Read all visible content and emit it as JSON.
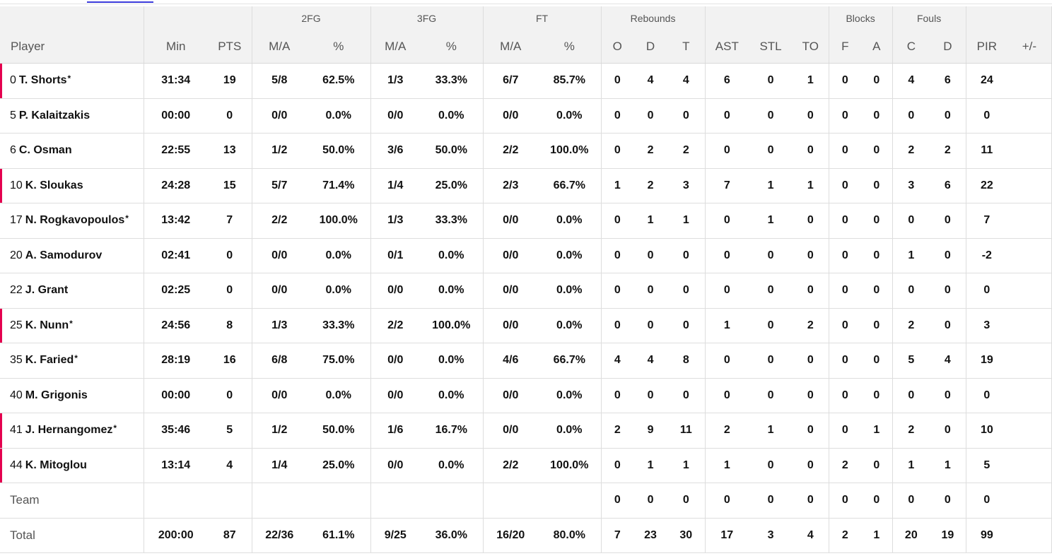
{
  "header": {
    "groups": {
      "fg2": "2FG",
      "fg3": "3FG",
      "ft": "FT",
      "rebounds": "Rebounds",
      "blocks": "Blocks",
      "fouls": "Fouls"
    },
    "columns": {
      "player": "Player",
      "min": "Min",
      "pts": "PTS",
      "fg2_ma": "M/A",
      "fg2_pct": "%",
      "fg3_ma": "M/A",
      "fg3_pct": "%",
      "ft_ma": "M/A",
      "ft_pct": "%",
      "reb_o": "O",
      "reb_d": "D",
      "reb_t": "T",
      "ast": "AST",
      "stl": "STL",
      "to": "TO",
      "blk_f": "F",
      "blk_a": "A",
      "foul_c": "C",
      "foul_d": "D",
      "pir": "PIR",
      "plusminus": "+/-"
    }
  },
  "players": [
    {
      "num": "0",
      "name": "T. Shorts",
      "star": "*",
      "starter": true,
      "min": "31:34",
      "pts": "19",
      "fg2_ma": "5/8",
      "fg2_pct": "62.5%",
      "fg3_ma": "1/3",
      "fg3_pct": "33.3%",
      "ft_ma": "6/7",
      "ft_pct": "85.7%",
      "reb_o": "0",
      "reb_d": "4",
      "reb_t": "4",
      "ast": "6",
      "stl": "0",
      "to": "1",
      "blk_f": "0",
      "blk_a": "0",
      "foul_c": "4",
      "foul_d": "6",
      "pir": "24",
      "plusminus": ""
    },
    {
      "num": "5",
      "name": "P. Kalaitzakis",
      "star": "",
      "starter": false,
      "min": "00:00",
      "pts": "0",
      "fg2_ma": "0/0",
      "fg2_pct": "0.0%",
      "fg3_ma": "0/0",
      "fg3_pct": "0.0%",
      "ft_ma": "0/0",
      "ft_pct": "0.0%",
      "reb_o": "0",
      "reb_d": "0",
      "reb_t": "0",
      "ast": "0",
      "stl": "0",
      "to": "0",
      "blk_f": "0",
      "blk_a": "0",
      "foul_c": "0",
      "foul_d": "0",
      "pir": "0",
      "plusminus": ""
    },
    {
      "num": "6",
      "name": "C. Osman",
      "star": "",
      "starter": false,
      "min": "22:55",
      "pts": "13",
      "fg2_ma": "1/2",
      "fg2_pct": "50.0%",
      "fg3_ma": "3/6",
      "fg3_pct": "50.0%",
      "ft_ma": "2/2",
      "ft_pct": "100.0%",
      "reb_o": "0",
      "reb_d": "2",
      "reb_t": "2",
      "ast": "0",
      "stl": "0",
      "to": "0",
      "blk_f": "0",
      "blk_a": "0",
      "foul_c": "2",
      "foul_d": "2",
      "pir": "11",
      "plusminus": ""
    },
    {
      "num": "10",
      "name": "K. Sloukas",
      "star": "",
      "starter": true,
      "min": "24:28",
      "pts": "15",
      "fg2_ma": "5/7",
      "fg2_pct": "71.4%",
      "fg3_ma": "1/4",
      "fg3_pct": "25.0%",
      "ft_ma": "2/3",
      "ft_pct": "66.7%",
      "reb_o": "1",
      "reb_d": "2",
      "reb_t": "3",
      "ast": "7",
      "stl": "1",
      "to": "1",
      "blk_f": "0",
      "blk_a": "0",
      "foul_c": "3",
      "foul_d": "6",
      "pir": "22",
      "plusminus": ""
    },
    {
      "num": "17",
      "name": "N. Rogkavopoulos",
      "star": "*",
      "starter": false,
      "min": "13:42",
      "pts": "7",
      "fg2_ma": "2/2",
      "fg2_pct": "100.0%",
      "fg3_ma": "1/3",
      "fg3_pct": "33.3%",
      "ft_ma": "0/0",
      "ft_pct": "0.0%",
      "reb_o": "0",
      "reb_d": "1",
      "reb_t": "1",
      "ast": "0",
      "stl": "1",
      "to": "0",
      "blk_f": "0",
      "blk_a": "0",
      "foul_c": "0",
      "foul_d": "0",
      "pir": "7",
      "plusminus": ""
    },
    {
      "num": "20",
      "name": "A. Samodurov",
      "star": "",
      "starter": false,
      "min": "02:41",
      "pts": "0",
      "fg2_ma": "0/0",
      "fg2_pct": "0.0%",
      "fg3_ma": "0/1",
      "fg3_pct": "0.0%",
      "ft_ma": "0/0",
      "ft_pct": "0.0%",
      "reb_o": "0",
      "reb_d": "0",
      "reb_t": "0",
      "ast": "0",
      "stl": "0",
      "to": "0",
      "blk_f": "0",
      "blk_a": "0",
      "foul_c": "1",
      "foul_d": "0",
      "pir": "-2",
      "plusminus": ""
    },
    {
      "num": "22",
      "name": "J. Grant",
      "star": "",
      "starter": false,
      "min": "02:25",
      "pts": "0",
      "fg2_ma": "0/0",
      "fg2_pct": "0.0%",
      "fg3_ma": "0/0",
      "fg3_pct": "0.0%",
      "ft_ma": "0/0",
      "ft_pct": "0.0%",
      "reb_o": "0",
      "reb_d": "0",
      "reb_t": "0",
      "ast": "0",
      "stl": "0",
      "to": "0",
      "blk_f": "0",
      "blk_a": "0",
      "foul_c": "0",
      "foul_d": "0",
      "pir": "0",
      "plusminus": ""
    },
    {
      "num": "25",
      "name": "K. Nunn",
      "star": "*",
      "starter": true,
      "min": "24:56",
      "pts": "8",
      "fg2_ma": "1/3",
      "fg2_pct": "33.3%",
      "fg3_ma": "2/2",
      "fg3_pct": "100.0%",
      "ft_ma": "0/0",
      "ft_pct": "0.0%",
      "reb_o": "0",
      "reb_d": "0",
      "reb_t": "0",
      "ast": "1",
      "stl": "0",
      "to": "2",
      "blk_f": "0",
      "blk_a": "0",
      "foul_c": "2",
      "foul_d": "0",
      "pir": "3",
      "plusminus": ""
    },
    {
      "num": "35",
      "name": "K. Faried",
      "star": "*",
      "starter": false,
      "min": "28:19",
      "pts": "16",
      "fg2_ma": "6/8",
      "fg2_pct": "75.0%",
      "fg3_ma": "0/0",
      "fg3_pct": "0.0%",
      "ft_ma": "4/6",
      "ft_pct": "66.7%",
      "reb_o": "4",
      "reb_d": "4",
      "reb_t": "8",
      "ast": "0",
      "stl": "0",
      "to": "0",
      "blk_f": "0",
      "blk_a": "0",
      "foul_c": "5",
      "foul_d": "4",
      "pir": "19",
      "plusminus": ""
    },
    {
      "num": "40",
      "name": "M. Grigonis",
      "star": "",
      "starter": false,
      "min": "00:00",
      "pts": "0",
      "fg2_ma": "0/0",
      "fg2_pct": "0.0%",
      "fg3_ma": "0/0",
      "fg3_pct": "0.0%",
      "ft_ma": "0/0",
      "ft_pct": "0.0%",
      "reb_o": "0",
      "reb_d": "0",
      "reb_t": "0",
      "ast": "0",
      "stl": "0",
      "to": "0",
      "blk_f": "0",
      "blk_a": "0",
      "foul_c": "0",
      "foul_d": "0",
      "pir": "0",
      "plusminus": ""
    },
    {
      "num": "41",
      "name": "J. Hernangomez",
      "star": "*",
      "starter": true,
      "min": "35:46",
      "pts": "5",
      "fg2_ma": "1/2",
      "fg2_pct": "50.0%",
      "fg3_ma": "1/6",
      "fg3_pct": "16.7%",
      "ft_ma": "0/0",
      "ft_pct": "0.0%",
      "reb_o": "2",
      "reb_d": "9",
      "reb_t": "11",
      "ast": "2",
      "stl": "1",
      "to": "0",
      "blk_f": "0",
      "blk_a": "1",
      "foul_c": "2",
      "foul_d": "0",
      "pir": "10",
      "plusminus": ""
    },
    {
      "num": "44",
      "name": "K. Mitoglou",
      "star": "",
      "starter": true,
      "min": "13:14",
      "pts": "4",
      "fg2_ma": "1/4",
      "fg2_pct": "25.0%",
      "fg3_ma": "0/0",
      "fg3_pct": "0.0%",
      "ft_ma": "2/2",
      "ft_pct": "100.0%",
      "reb_o": "0",
      "reb_d": "1",
      "reb_t": "1",
      "ast": "1",
      "stl": "0",
      "to": "0",
      "blk_f": "2",
      "blk_a": "0",
      "foul_c": "1",
      "foul_d": "1",
      "pir": "5",
      "plusminus": ""
    }
  ],
  "team": {
    "label": "Team",
    "min": "",
    "pts": "",
    "fg2_ma": "",
    "fg2_pct": "",
    "fg3_ma": "",
    "fg3_pct": "",
    "ft_ma": "",
    "ft_pct": "",
    "reb_o": "0",
    "reb_d": "0",
    "reb_t": "0",
    "ast": "0",
    "stl": "0",
    "to": "0",
    "blk_f": "0",
    "blk_a": "0",
    "foul_c": "0",
    "foul_d": "0",
    "pir": "0",
    "plusminus": ""
  },
  "total": {
    "label": "Total",
    "min": "200:00",
    "pts": "87",
    "fg2_ma": "22/36",
    "fg2_pct": "61.1%",
    "fg3_ma": "9/25",
    "fg3_pct": "36.0%",
    "ft_ma": "16/20",
    "ft_pct": "80.0%",
    "reb_o": "7",
    "reb_d": "23",
    "reb_t": "30",
    "ast": "17",
    "stl": "3",
    "to": "4",
    "blk_f": "2",
    "blk_a": "1",
    "foul_c": "20",
    "foul_d": "19",
    "pir": "99",
    "plusminus": ""
  },
  "colors": {
    "starter_marker": "#e4004f",
    "tab_indicator": "#3b3bdb",
    "header_bg": "#f2f2f2"
  }
}
